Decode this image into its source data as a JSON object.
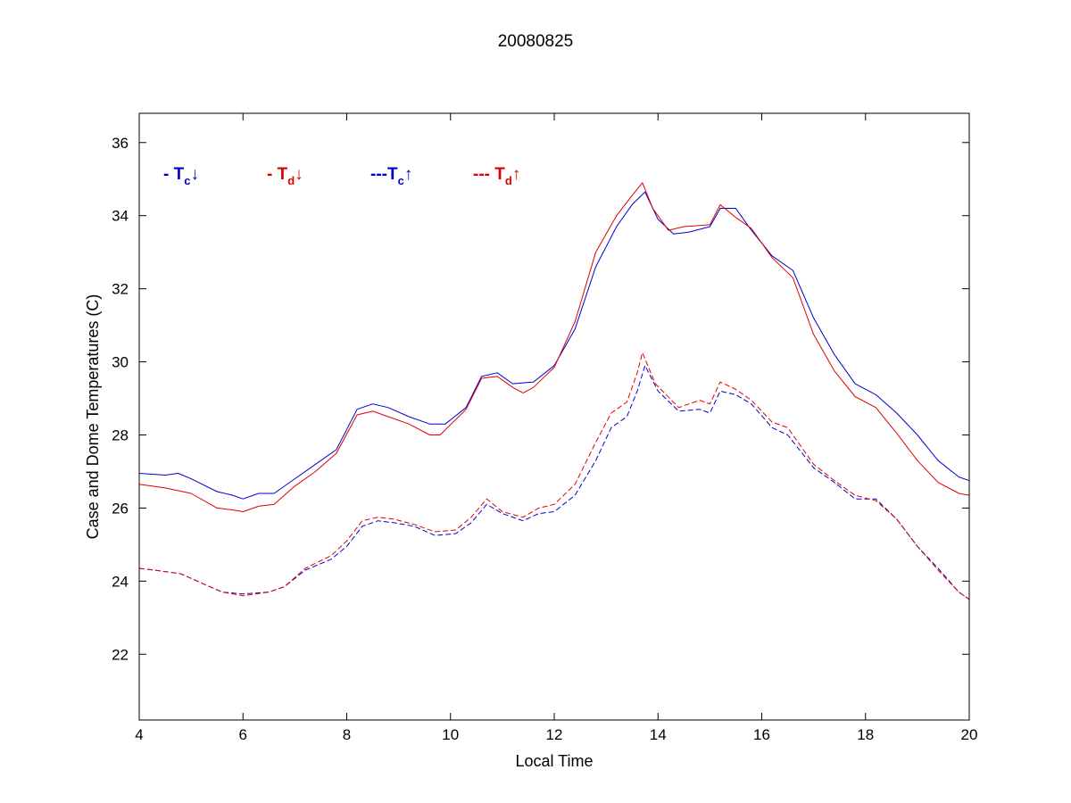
{
  "chart_data": {
    "type": "line",
    "title": "20080825",
    "xlabel": "Local Time",
    "ylabel": "Case and Dome Temperatures (C)",
    "xlim": [
      4,
      20
    ],
    "ylim": [
      20.2,
      36.8
    ],
    "xticks": [
      4,
      6,
      8,
      10,
      12,
      14,
      16,
      18,
      20
    ],
    "yticks": [
      22,
      24,
      26,
      28,
      30,
      32,
      34,
      36
    ],
    "grid": false,
    "legend": {
      "placement": "top-left",
      "orientation": "horizontal"
    },
    "series": [
      {
        "name": "- Tc↓",
        "legend_prefix": "- ",
        "legend_symbol": "T",
        "legend_sub": "c",
        "legend_arrow": "↓",
        "color": "#0000cc",
        "dash": "solid",
        "x": [
          4.0,
          4.5,
          4.75,
          5.0,
          5.5,
          5.8,
          6.0,
          6.3,
          6.6,
          7.0,
          7.4,
          7.8,
          8.2,
          8.5,
          8.8,
          9.2,
          9.6,
          9.9,
          10.3,
          10.6,
          10.9,
          11.2,
          11.6,
          12.0,
          12.4,
          12.8,
          13.2,
          13.5,
          13.75,
          14.0,
          14.3,
          14.6,
          15.0,
          15.2,
          15.5,
          15.8,
          16.2,
          16.6,
          17.0,
          17.4,
          17.8,
          18.2,
          18.6,
          19.0,
          19.4,
          19.8,
          20.0
        ],
        "y": [
          26.95,
          26.9,
          26.95,
          26.8,
          26.45,
          26.35,
          26.25,
          26.4,
          26.4,
          26.8,
          27.2,
          27.6,
          28.7,
          28.85,
          28.75,
          28.5,
          28.3,
          28.3,
          28.75,
          29.6,
          29.7,
          29.4,
          29.45,
          29.9,
          30.9,
          32.6,
          33.7,
          34.3,
          34.65,
          33.9,
          33.5,
          33.55,
          33.7,
          34.2,
          34.2,
          33.6,
          32.9,
          32.5,
          31.2,
          30.2,
          29.4,
          29.1,
          28.6,
          28.0,
          27.3,
          26.85,
          26.75
        ]
      },
      {
        "name": "- Td↓",
        "legend_prefix": "- ",
        "legend_symbol": "T",
        "legend_sub": "d",
        "legend_arrow": "↓",
        "color": "#dd0000",
        "dash": "solid",
        "x": [
          4.0,
          4.5,
          5.0,
          5.5,
          5.8,
          6.0,
          6.3,
          6.6,
          7.0,
          7.4,
          7.8,
          8.2,
          8.5,
          8.8,
          9.2,
          9.6,
          9.8,
          10.3,
          10.6,
          10.9,
          11.2,
          11.4,
          11.6,
          12.0,
          12.4,
          12.8,
          13.2,
          13.5,
          13.7,
          13.9,
          14.2,
          14.5,
          15.0,
          15.2,
          15.5,
          15.8,
          16.2,
          16.6,
          17.0,
          17.4,
          17.8,
          18.2,
          18.6,
          19.0,
          19.4,
          19.8,
          20.0
        ],
        "y": [
          26.65,
          26.55,
          26.4,
          26.0,
          25.95,
          25.9,
          26.05,
          26.1,
          26.6,
          27.0,
          27.5,
          28.55,
          28.65,
          28.5,
          28.3,
          28.0,
          28.0,
          28.7,
          29.55,
          29.6,
          29.3,
          29.15,
          29.3,
          29.85,
          31.1,
          33.0,
          34.0,
          34.55,
          34.9,
          34.2,
          33.6,
          33.7,
          33.75,
          34.3,
          33.95,
          33.65,
          32.85,
          32.3,
          30.75,
          29.75,
          29.05,
          28.75,
          28.05,
          27.3,
          26.7,
          26.4,
          26.35
        ]
      },
      {
        "name": "---Tc↑",
        "legend_prefix": "---",
        "legend_symbol": "T",
        "legend_sub": "c",
        "legend_arrow": "↑",
        "color": "#0000cc",
        "dash": "dashed",
        "x": [
          4.0,
          4.3,
          4.8,
          5.2,
          5.6,
          6.0,
          6.5,
          6.8,
          7.2,
          7.7,
          8.0,
          8.3,
          8.6,
          8.9,
          9.3,
          9.7,
          10.1,
          10.4,
          10.7,
          11.0,
          11.4,
          11.7,
          12.0,
          12.4,
          12.8,
          13.1,
          13.4,
          13.6,
          13.75,
          14.0,
          14.4,
          14.8,
          15.0,
          15.2,
          15.5,
          15.8,
          16.2,
          16.5,
          17.0,
          17.4,
          17.8,
          18.2,
          18.6,
          19.0,
          19.4,
          19.8,
          20.0
        ],
        "y": [
          24.35,
          24.3,
          24.2,
          23.95,
          23.7,
          23.65,
          23.7,
          23.85,
          24.3,
          24.6,
          24.95,
          25.5,
          25.65,
          25.6,
          25.5,
          25.25,
          25.3,
          25.6,
          26.1,
          25.85,
          25.65,
          25.85,
          25.9,
          26.35,
          27.3,
          28.2,
          28.5,
          29.2,
          29.9,
          29.2,
          28.65,
          28.7,
          28.6,
          29.2,
          29.1,
          28.85,
          28.2,
          28.0,
          27.1,
          26.7,
          26.25,
          26.25,
          25.7,
          24.95,
          24.35,
          23.7,
          23.5
        ]
      },
      {
        "name": "--- Td↑",
        "legend_prefix": "--- ",
        "legend_symbol": "T",
        "legend_sub": "d",
        "legend_arrow": "↑",
        "color": "#dd0000",
        "dash": "dashed",
        "x": [
          4.0,
          4.3,
          4.8,
          5.2,
          5.6,
          6.0,
          6.5,
          6.8,
          7.2,
          7.7,
          8.0,
          8.3,
          8.6,
          8.9,
          9.3,
          9.7,
          10.1,
          10.4,
          10.7,
          11.0,
          11.4,
          11.7,
          12.0,
          12.4,
          12.8,
          13.1,
          13.4,
          13.6,
          13.7,
          13.95,
          14.4,
          14.8,
          15.0,
          15.2,
          15.5,
          15.8,
          16.2,
          16.5,
          17.0,
          17.4,
          17.8,
          18.2,
          18.6,
          19.0,
          19.4,
          19.8,
          20.0
        ],
        "y": [
          24.35,
          24.3,
          24.2,
          23.95,
          23.7,
          23.6,
          23.7,
          23.85,
          24.35,
          24.7,
          25.1,
          25.65,
          25.75,
          25.7,
          25.55,
          25.35,
          25.4,
          25.75,
          26.25,
          25.9,
          25.75,
          26.0,
          26.1,
          26.65,
          27.8,
          28.6,
          28.9,
          29.7,
          30.25,
          29.4,
          28.75,
          28.95,
          28.85,
          29.45,
          29.25,
          28.95,
          28.35,
          28.2,
          27.2,
          26.75,
          26.35,
          26.2,
          25.7,
          24.95,
          24.3,
          23.7,
          23.5
        ]
      }
    ]
  }
}
